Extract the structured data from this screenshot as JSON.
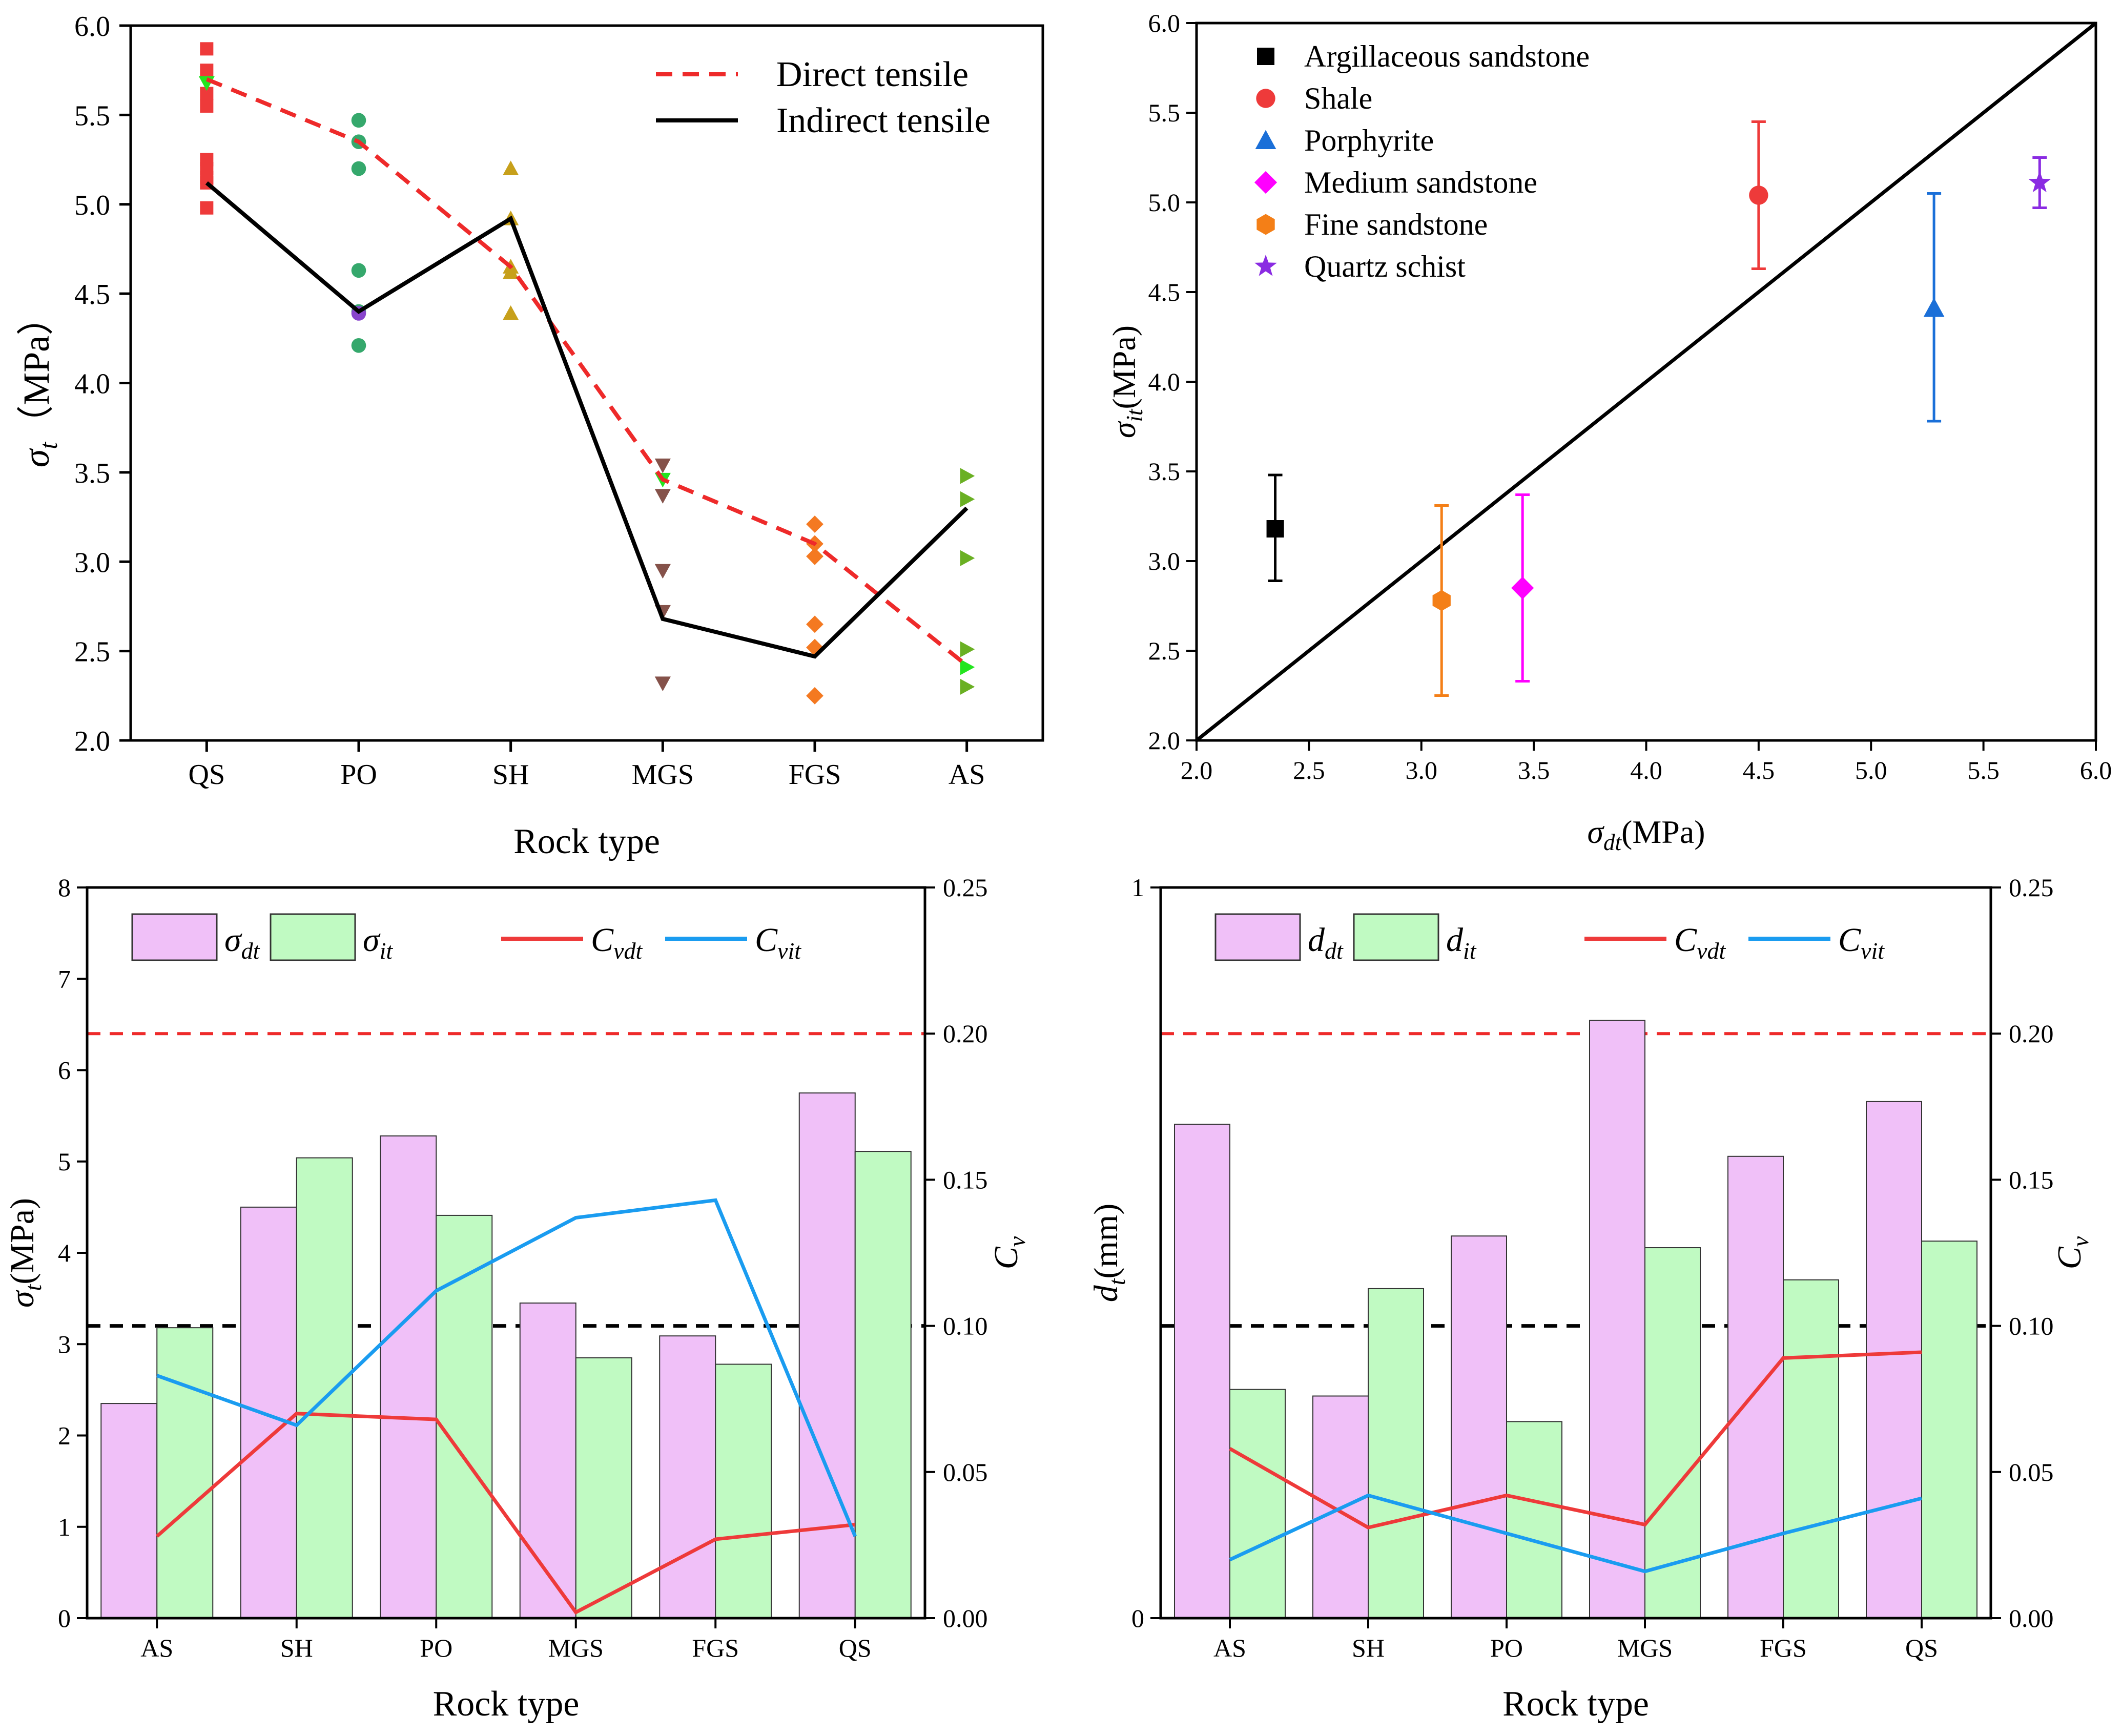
{
  "chart_data": [
    {
      "type": "scatter",
      "id": "panel-a",
      "xlabel": "Rock type",
      "ylabel_main": "σ",
      "ylabel_sub": "t",
      "ylabel_unit": "（MPa）",
      "categories": [
        "QS",
        "PO",
        "SH",
        "MGS",
        "FGS",
        "AS"
      ],
      "yticks": [
        "2.0",
        "2.5",
        "3.0",
        "3.5",
        "4.0",
        "4.5",
        "5.0",
        "5.5",
        "6.0"
      ],
      "ylim": [
        2.0,
        6.0
      ],
      "legend": {
        "direct": "Direct tensile",
        "indirect": "Indirect tensile"
      },
      "direct_tensile": [
        5.7,
        5.35,
        4.65,
        3.46,
        3.1,
        2.42
      ],
      "indirect_tensile": [
        5.12,
        4.4,
        4.92,
        2.68,
        2.47,
        3.3
      ],
      "samples": [
        {
          "category": "QS",
          "shape": "square",
          "color": "#ee3a3a",
          "values": [
            5.87,
            5.75,
            5.62,
            5.55,
            5.25,
            5.2,
            5.15,
            5.12,
            4.98
          ]
        },
        {
          "category": "QS",
          "shape": "triangle-down",
          "color": "#23e51f",
          "values": [
            5.68
          ]
        },
        {
          "category": "PO",
          "shape": "circle",
          "color": "#35a86c",
          "values": [
            5.47,
            5.35,
            5.2,
            4.63,
            4.4,
            4.21
          ]
        },
        {
          "category": "PO",
          "shape": "circle",
          "color": "#8844cc",
          "values": [
            4.39
          ]
        },
        {
          "category": "SH",
          "shape": "triangle",
          "color": "#c7a01b",
          "values": [
            5.2,
            4.92,
            4.65,
            4.62,
            4.39
          ]
        },
        {
          "category": "MGS",
          "shape": "triangle-down",
          "color": "#85524a",
          "values": [
            3.54,
            3.37,
            2.95,
            2.72,
            2.32
          ]
        },
        {
          "category": "MGS",
          "shape": "triangle-down",
          "color": "#23e51f",
          "values": [
            3.46
          ]
        },
        {
          "category": "FGS",
          "shape": "diamond",
          "color": "#f47921",
          "values": [
            3.21,
            3.1,
            3.03,
            2.65,
            2.52,
            2.25
          ]
        },
        {
          "category": "AS",
          "shape": "triangle-right",
          "color": "#6ab023",
          "values": [
            3.48,
            3.35,
            3.02,
            2.51,
            2.3
          ]
        },
        {
          "category": "AS",
          "shape": "triangle-right",
          "color": "#23e51f",
          "values": [
            2.41
          ]
        }
      ]
    },
    {
      "type": "scatter",
      "id": "panel-b",
      "xlabel_main": "σ",
      "xlabel_sub": "dt",
      "xlabel_unit": "(MPa)",
      "ylabel_main": "σ",
      "ylabel_sub": "it",
      "ylabel_unit": "(MPa)",
      "xlim": [
        2.0,
        6.0
      ],
      "ylim": [
        2.0,
        6.0
      ],
      "xticks": [
        "2.0",
        "2.5",
        "3.0",
        "3.5",
        "4.0",
        "4.5",
        "5.0",
        "5.5",
        "6.0"
      ],
      "yticks": [
        "2.0",
        "2.5",
        "3.0",
        "3.5",
        "4.0",
        "4.5",
        "5.0",
        "5.5",
        "6.0"
      ],
      "reference_line": [
        [
          2.0,
          2.0
        ],
        [
          6.0,
          6.0
        ]
      ],
      "points": [
        {
          "name": "Argillaceous sandstone",
          "shape": "square",
          "color": "#000000",
          "x": 2.35,
          "y": 3.18,
          "ylo": 2.89,
          "yhi": 3.48
        },
        {
          "name": "Shale",
          "shape": "circle",
          "color": "#ee3a3a",
          "x": 4.5,
          "y": 5.04,
          "ylo": 4.63,
          "yhi": 5.45
        },
        {
          "name": "Porphyrite",
          "shape": "triangle",
          "color": "#1a6fd8",
          "x": 5.28,
          "y": 4.41,
          "ylo": 3.78,
          "yhi": 5.05
        },
        {
          "name": "Medium sandstone",
          "shape": "diamond",
          "color": "#ff00ff",
          "x": 3.45,
          "y": 2.85,
          "ylo": 2.33,
          "yhi": 3.37
        },
        {
          "name": "Fine sandstone",
          "shape": "hexagon",
          "color": "#f47f17",
          "x": 3.09,
          "y": 2.78,
          "ylo": 2.25,
          "yhi": 3.31
        },
        {
          "name": "Quartz schist",
          "shape": "star",
          "color": "#8a2be2",
          "x": 5.75,
          "y": 5.11,
          "ylo": 4.97,
          "yhi": 5.25
        }
      ]
    },
    {
      "type": "bar",
      "id": "panel-c",
      "xlabel": "Rock type",
      "ylabel_main": "σ",
      "ylabel_sub": "t",
      "ylabel_unit": "(MPa)",
      "y2label_main": "C",
      "y2label_sub": "v",
      "categories": [
        "AS",
        "SH",
        "PO",
        "MGS",
        "FGS",
        "QS"
      ],
      "ylim": [
        0,
        8
      ],
      "y2lim": [
        0.0,
        0.25
      ],
      "yticks": [
        "0",
        "1",
        "2",
        "3",
        "4",
        "5",
        "6",
        "7",
        "8"
      ],
      "y2ticks": [
        "0.00",
        "0.05",
        "0.10",
        "0.15",
        "0.20",
        "0.25"
      ],
      "reference_lines": {
        "red_dashed": 0.2,
        "black_dashed": 0.1
      },
      "legend": [
        {
          "main": "σ",
          "sub": "dt"
        },
        {
          "main": "σ",
          "sub": "it"
        },
        {
          "main": "C",
          "sub": "vdt"
        },
        {
          "main": "C",
          "sub": "vit"
        }
      ],
      "series": [
        {
          "name": "σdt",
          "kind": "bar",
          "axis": "left",
          "color": "#f0c0f8",
          "values": [
            2.35,
            4.5,
            5.28,
            3.45,
            3.09,
            5.75
          ]
        },
        {
          "name": "σit",
          "kind": "bar",
          "axis": "left",
          "color": "#c0fac2",
          "values": [
            3.18,
            5.04,
            4.41,
            2.85,
            2.78,
            5.11
          ]
        },
        {
          "name": "Cvdt",
          "kind": "line",
          "axis": "right",
          "color": "#ee3a3a",
          "values": [
            0.028,
            0.07,
            0.068,
            0.002,
            0.027,
            0.032
          ]
        },
        {
          "name": "Cvit",
          "kind": "line",
          "axis": "right",
          "color": "#1a9cf0",
          "values": [
            0.083,
            0.066,
            0.112,
            0.137,
            0.143,
            0.028
          ]
        }
      ]
    },
    {
      "type": "bar",
      "id": "panel-d",
      "xlabel": "Rock type",
      "ylabel_main": "d",
      "ylabel_sub": "t",
      "ylabel_unit": "(mm)",
      "y2label_main": "C",
      "y2label_sub": "v",
      "categories": [
        "AS",
        "SH",
        "PO",
        "MGS",
        "FGS",
        "QS"
      ],
      "ylim": [
        0,
        1
      ],
      "y2lim": [
        0.0,
        0.25
      ],
      "yticks": [
        "0",
        "1"
      ],
      "y2ticks": [
        "0.00",
        "0.05",
        "0.10",
        "0.15",
        "0.20",
        "0.25"
      ],
      "reference_lines": {
        "red_dashed": 0.2,
        "black_dashed": 0.1
      },
      "legend": [
        {
          "main": "d",
          "sub": "dt"
        },
        {
          "main": "d",
          "sub": "it"
        },
        {
          "main": "C",
          "sub": "vdt"
        },
        {
          "main": "C",
          "sub": "vit"
        }
      ],
      "series": [
        {
          "name": "ddt",
          "kind": "bar",
          "axis": "left",
          "color": "#f0c0f8",
          "values": [
            0.676,
            0.304,
            0.523,
            0.818,
            0.632,
            0.707
          ]
        },
        {
          "name": "dit",
          "kind": "bar",
          "axis": "left",
          "color": "#c0fac2",
          "values": [
            0.313,
            0.451,
            0.269,
            0.507,
            0.463,
            0.516
          ]
        },
        {
          "name": "Cvdt",
          "kind": "line",
          "axis": "right",
          "color": "#ee3a3a",
          "values": [
            0.058,
            0.031,
            0.042,
            0.032,
            0.089,
            0.091
          ]
        },
        {
          "name": "Cvit",
          "kind": "line",
          "axis": "right",
          "color": "#1a9cf0",
          "values": [
            0.02,
            0.042,
            0.029,
            0.016,
            0.029,
            0.041
          ]
        }
      ]
    }
  ]
}
